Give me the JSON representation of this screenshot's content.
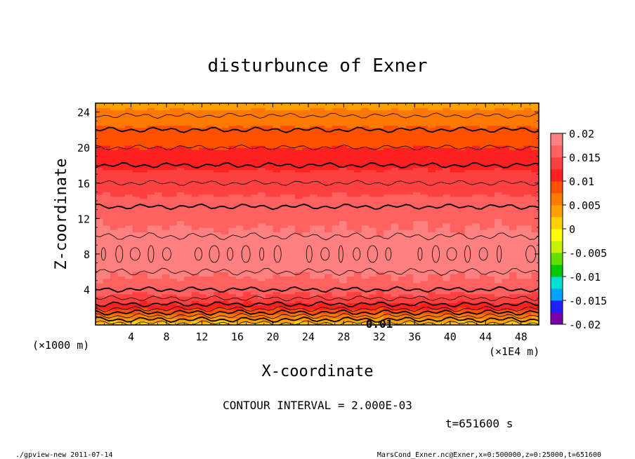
{
  "chart_data": {
    "type": "heatmap",
    "title": "disturbunce of Exner",
    "xlabel": "X-coordinate",
    "ylabel": "Z-coordinate",
    "x_unit_left": "(×1000 m)",
    "x_unit_right": "(×1E4 m)",
    "xlim": [
      0,
      50
    ],
    "ylim": [
      0,
      25
    ],
    "x_ticks": [
      "4",
      "8",
      "12",
      "16",
      "20",
      "24",
      "28",
      "32",
      "36",
      "40",
      "44",
      "48"
    ],
    "y_ticks": [
      "4",
      "8",
      "12",
      "16",
      "20",
      "24"
    ],
    "colorbar_ticks": [
      "0.02",
      "0.015",
      "0.01",
      "0.005",
      "0",
      "-0.005",
      "-0.01",
      "-0.015",
      "-0.02"
    ],
    "colorbar_range": [
      -0.02,
      0.02
    ],
    "colorbar_colors": [
      "#7b00a8",
      "#2020ff",
      "#00a0ff",
      "#00e0d0",
      "#00c800",
      "#60e000",
      "#c8f000",
      "#ffff00",
      "#ffd000",
      "#ffa000",
      "#ff7800",
      "#ff5000",
      "#ff2020",
      "#ff4040",
      "#ff6060",
      "#ff8080"
    ],
    "contour_interval": "CONTOUR INTERVAL = 2.000E-03",
    "contour_label": "0.01",
    "profile_z": [
      0,
      0.4,
      0.8,
      1.2,
      1.6,
      2.0,
      2.5,
      3.0,
      3.5,
      4.0,
      5.0,
      6.0,
      7.0,
      8.0,
      9.0,
      10.0,
      11.0,
      12.0,
      14.0,
      16.0,
      18.0,
      20.0,
      22.0,
      24.0,
      25.0
    ],
    "profile_value": [
      0.001,
      0.003,
      0.005,
      0.007,
      0.009,
      0.011,
      0.0125,
      0.014,
      0.015,
      0.016,
      0.017,
      0.018,
      0.019,
      0.0195,
      0.019,
      0.018,
      0.0175,
      0.017,
      0.0155,
      0.014,
      0.012,
      0.01,
      0.008,
      0.0055,
      0.004
    ]
  },
  "time_label": "t=651600 s",
  "footer_left": "./gpview-new  2011-07-14",
  "footer_right": "MarsCond_Exner.nc@Exner,x=0:500000,z=0:25000,t=651600"
}
